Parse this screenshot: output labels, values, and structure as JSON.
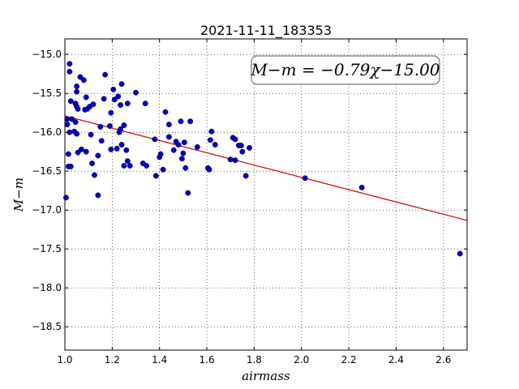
{
  "chart_data": {
    "type": "scatter",
    "title": "2021-11-11_183353",
    "xlabel": "airmass",
    "ylabel": "M−m",
    "xlim": [
      1.0,
      2.7
    ],
    "ylim": [
      -18.8,
      -14.8
    ],
    "y_inverted": true,
    "grid": true,
    "x_ticks": [
      1.0,
      1.2,
      1.4,
      1.6,
      1.8,
      2.0,
      2.2,
      2.4,
      2.6
    ],
    "x_tick_labels": [
      "1.0",
      "1.2",
      "1.4",
      "1.6",
      "1.8",
      "2.0",
      "2.2",
      "2.4",
      "2.6"
    ],
    "y_ticks": [
      -15.0,
      -15.5,
      -16.0,
      -16.5,
      -17.0,
      -17.5,
      -18.0,
      -18.5
    ],
    "y_tick_labels": [
      "−15.0",
      "−15.5",
      "−16.0",
      "−16.5",
      "−17.0",
      "−17.5",
      "−18.0",
      "−18.5"
    ],
    "annotation": "M−m = −0.79χ−15.00",
    "fit": {
      "slope": -0.79,
      "intercept": -15.0,
      "color": "#cc0000"
    },
    "point_color": "#0000cc",
    "points": [
      [
        1.005,
        -16.84
      ],
      [
        1.01,
        -15.9
      ],
      [
        1.01,
        -15.83
      ],
      [
        1.015,
        -16.28
      ],
      [
        1.015,
        -16.44
      ],
      [
        1.02,
        -15.22
      ],
      [
        1.02,
        -15.12
      ],
      [
        1.02,
        -16.0
      ],
      [
        1.025,
        -16.44
      ],
      [
        1.025,
        -15.6
      ],
      [
        1.03,
        -15.83
      ],
      [
        1.04,
        -15.99
      ],
      [
        1.045,
        -15.63
      ],
      [
        1.045,
        -15.87
      ],
      [
        1.05,
        -15.41
      ],
      [
        1.05,
        -15.48
      ],
      [
        1.05,
        -16.02
      ],
      [
        1.05,
        -15.67
      ],
      [
        1.055,
        -15.7
      ],
      [
        1.055,
        -16.26
      ],
      [
        1.065,
        -15.29
      ],
      [
        1.07,
        -16.22
      ],
      [
        1.08,
        -15.33
      ],
      [
        1.085,
        -15.71
      ],
      [
        1.09,
        -15.55
      ],
      [
        1.09,
        -16.25
      ],
      [
        1.095,
        -15.7
      ],
      [
        1.105,
        -15.67
      ],
      [
        1.11,
        -16.03
      ],
      [
        1.115,
        -16.4
      ],
      [
        1.12,
        -15.64
      ],
      [
        1.125,
        -16.55
      ],
      [
        1.14,
        -16.3
      ],
      [
        1.14,
        -16.81
      ],
      [
        1.15,
        -15.93
      ],
      [
        1.155,
        -16.11
      ],
      [
        1.165,
        -15.57
      ],
      [
        1.17,
        -15.26
      ],
      [
        1.19,
        -15.92
      ],
      [
        1.195,
        -16.22
      ],
      [
        1.195,
        -15.75
      ],
      [
        1.205,
        -15.45
      ],
      [
        1.21,
        -15.58
      ],
      [
        1.22,
        -16.21
      ],
      [
        1.225,
        -15.54
      ],
      [
        1.23,
        -16.0
      ],
      [
        1.235,
        -15.96
      ],
      [
        1.235,
        -15.65
      ],
      [
        1.24,
        -16.16
      ],
      [
        1.24,
        -15.38
      ],
      [
        1.25,
        -15.91
      ],
      [
        1.25,
        -16.43
      ],
      [
        1.26,
        -16.23
      ],
      [
        1.265,
        -15.63
      ],
      [
        1.265,
        -16.37
      ],
      [
        1.275,
        -16.43
      ],
      [
        1.3,
        -15.49
      ],
      [
        1.33,
        -16.4
      ],
      [
        1.34,
        -15.63
      ],
      [
        1.345,
        -16.43
      ],
      [
        1.38,
        -16.09
      ],
      [
        1.385,
        -16.56
      ],
      [
        1.4,
        -16.32
      ],
      [
        1.405,
        -16.28
      ],
      [
        1.415,
        -16.48
      ],
      [
        1.425,
        -15.74
      ],
      [
        1.44,
        -16.06
      ],
      [
        1.44,
        -15.9
      ],
      [
        1.46,
        -16.23
      ],
      [
        1.47,
        -16.12
      ],
      [
        1.48,
        -16.16
      ],
      [
        1.49,
        -15.86
      ],
      [
        1.495,
        -16.34
      ],
      [
        1.5,
        -16.27
      ],
      [
        1.505,
        -16.13
      ],
      [
        1.51,
        -16.46
      ],
      [
        1.52,
        -16.78
      ],
      [
        1.53,
        -15.86
      ],
      [
        1.56,
        -16.19
      ],
      [
        1.605,
        -16.46
      ],
      [
        1.61,
        -16.48
      ],
      [
        1.615,
        -16.1
      ],
      [
        1.62,
        -15.99
      ],
      [
        1.635,
        -16.16
      ],
      [
        1.7,
        -16.35
      ],
      [
        1.71,
        -16.07
      ],
      [
        1.72,
        -16.09
      ],
      [
        1.72,
        -16.36
      ],
      [
        1.735,
        -16.17
      ],
      [
        1.745,
        -16.17
      ],
      [
        1.75,
        -16.25
      ],
      [
        1.765,
        -16.56
      ],
      [
        1.78,
        -16.2
      ],
      [
        2.015,
        -16.59
      ],
      [
        2.255,
        -16.71
      ],
      [
        2.67,
        -17.56
      ]
    ]
  }
}
